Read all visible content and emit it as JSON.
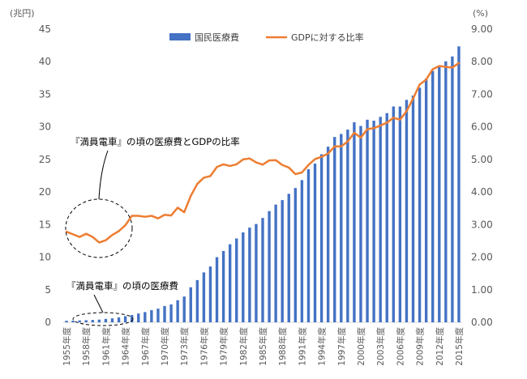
{
  "chart_data": {
    "type": "bar+line",
    "left_axis_unit": "(兆円)",
    "right_axis_unit": "(%)",
    "left_ticks": [
      "0",
      "5",
      "10",
      "15",
      "20",
      "25",
      "30",
      "35",
      "40",
      "45"
    ],
    "right_ticks": [
      "0.00",
      "1.00",
      "2.00",
      "3.00",
      "4.00",
      "5.00",
      "6.00",
      "7.00",
      "8.00",
      "9.00"
    ],
    "ylim_left": [
      0,
      45
    ],
    "ylim_right": [
      0,
      9
    ],
    "x": [
      1955,
      1956,
      1957,
      1958,
      1959,
      1960,
      1961,
      1962,
      1963,
      1964,
      1965,
      1966,
      1967,
      1968,
      1969,
      1970,
      1971,
      1972,
      1973,
      1974,
      1975,
      1976,
      1977,
      1978,
      1979,
      1980,
      1981,
      1982,
      1983,
      1984,
      1985,
      1986,
      1987,
      1988,
      1989,
      1990,
      1991,
      1992,
      1993,
      1994,
      1995,
      1996,
      1997,
      1998,
      1999,
      2000,
      2001,
      2002,
      2003,
      2004,
      2005,
      2006,
      2007,
      2008,
      2009,
      2010,
      2011,
      2012,
      2013,
      2014,
      2015
    ],
    "x_tick_labels": [
      "1955年度",
      "1958年度",
      "1961年度",
      "1964年度",
      "1967年度",
      "1970年度",
      "1973年度",
      "1976年度",
      "1979年度",
      "1982年度",
      "1985年度",
      "1988年度",
      "1991年度",
      "1994年度",
      "1997年度",
      "2000年度",
      "2003年度",
      "2006年度",
      "2009年度",
      "2012年度",
      "2015年度"
    ],
    "x_tick_years": [
      1955,
      1958,
      1961,
      1964,
      1967,
      1970,
      1973,
      1976,
      1979,
      1982,
      1985,
      1988,
      1991,
      1994,
      1997,
      2000,
      2003,
      2006,
      2009,
      2012,
      2015
    ],
    "series": [
      {
        "name": "国民医療費",
        "type": "bar",
        "axis": "left",
        "color": "#4472C4",
        "values": [
          0.24,
          0.26,
          0.29,
          0.32,
          0.36,
          0.41,
          0.52,
          0.61,
          0.76,
          0.94,
          1.12,
          1.35,
          1.57,
          1.87,
          2.1,
          2.5,
          2.75,
          3.39,
          3.96,
          5.38,
          6.48,
          7.66,
          8.57,
          10.0,
          10.95,
          11.98,
          12.87,
          13.8,
          14.54,
          15.09,
          16.02,
          17.07,
          18.07,
          18.76,
          19.73,
          20.61,
          21.83,
          23.5,
          24.36,
          25.8,
          26.96,
          28.45,
          28.91,
          29.58,
          30.7,
          30.14,
          31.1,
          30.95,
          31.54,
          32.11,
          33.13,
          33.13,
          34.14,
          34.81,
          36.01,
          37.42,
          38.59,
          39.21,
          40.06,
          40.81,
          42.36
        ]
      },
      {
        "name": "GDPに対する比率",
        "type": "line",
        "axis": "right",
        "color": "#ED7D31",
        "values": [
          2.78,
          2.7,
          2.62,
          2.72,
          2.62,
          2.45,
          2.52,
          2.68,
          2.8,
          2.98,
          3.27,
          3.27,
          3.24,
          3.27,
          3.19,
          3.3,
          3.28,
          3.52,
          3.38,
          3.88,
          4.25,
          4.44,
          4.49,
          4.77,
          4.85,
          4.8,
          4.85,
          5.0,
          5.03,
          4.91,
          4.84,
          4.97,
          4.98,
          4.83,
          4.75,
          4.55,
          4.6,
          4.83,
          5.01,
          5.08,
          5.18,
          5.4,
          5.4,
          5.55,
          5.82,
          5.67,
          5.93,
          5.96,
          6.04,
          6.13,
          6.28,
          6.22,
          6.48,
          6.87,
          7.3,
          7.45,
          7.77,
          7.87,
          7.84,
          7.82,
          7.96
        ]
      }
    ],
    "legend_placement": "top",
    "grid": false
  },
  "annotations": {
    "ratio_label": "『満員電車』の頃の医療費とGDPの比率",
    "bar_label": "『満員電車』の頃の医療費"
  }
}
